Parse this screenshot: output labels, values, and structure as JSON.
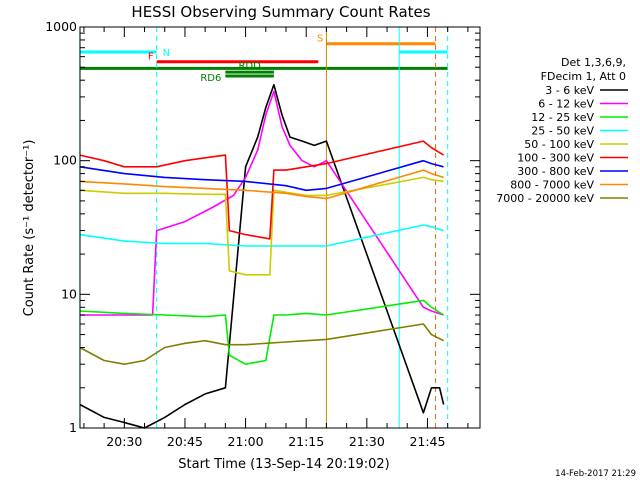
{
  "chart_data": {
    "type": "line",
    "title": "HESSI Observing Summary Count Rates",
    "xlabel": "Start Time (13-Sep-14 20:19:02)",
    "ylabel": "Count Rate (s⁻¹ detector⁻¹)",
    "yscale": "log",
    "xlim": [
      "20:19:02",
      "21:58:00"
    ],
    "ylim": [
      1,
      1000
    ],
    "x_ticks": [
      "20:30",
      "20:45",
      "21:00",
      "21:15",
      "21:30",
      "21:45"
    ],
    "y_ticks": [
      {
        "value": 1,
        "label": "1"
      },
      {
        "value": 10,
        "label": "10"
      },
      {
        "value": 100,
        "label": "100"
      },
      {
        "value": 1000,
        "label": "1000"
      }
    ],
    "legend_header": [
      "Det 1,3,6,9,",
      "FDecim 1, Att 0"
    ],
    "legend_position": "right",
    "series": [
      {
        "name": "3 - 6 keV",
        "color": "#000000",
        "x": [
          "20:19",
          "20:25",
          "20:30",
          "20:35",
          "20:40",
          "20:45",
          "20:50",
          "20:55",
          "21:00",
          "21:03",
          "21:05",
          "21:07",
          "21:09",
          "21:11",
          "21:14",
          "21:17",
          "21:20",
          "21:44",
          "21:46",
          "21:48",
          "21:49"
        ],
        "y": [
          1.5,
          1.2,
          1.1,
          1.0,
          1.2,
          1.5,
          1.8,
          2.0,
          90,
          150,
          250,
          370,
          220,
          150,
          140,
          130,
          140,
          1.3,
          2.0,
          2.0,
          1.5
        ]
      },
      {
        "name": "6 - 12 keV",
        "color": "#ff00ff",
        "x": [
          "20:19",
          "20:30",
          "20:37",
          "20:38",
          "20:45",
          "20:52",
          "20:57",
          "21:00",
          "21:03",
          "21:05",
          "21:07",
          "21:09",
          "21:11",
          "21:14",
          "21:17",
          "21:20",
          "21:44",
          "21:46",
          "21:49"
        ],
        "y": [
          7,
          7,
          7,
          30,
          35,
          45,
          55,
          75,
          120,
          220,
          330,
          180,
          130,
          100,
          90,
          100,
          8,
          7.5,
          7
        ]
      },
      {
        "name": "12 - 25 keV",
        "color": "#00ee00",
        "x": [
          "20:19",
          "20:30",
          "20:40",
          "20:50",
          "20:55",
          "20:56",
          "21:00",
          "21:05",
          "21:07",
          "21:10",
          "21:15",
          "21:20",
          "21:44",
          "21:46",
          "21:49"
        ],
        "y": [
          7.5,
          7.2,
          7.0,
          6.8,
          7,
          3.5,
          3.0,
          3.2,
          7.0,
          7.0,
          7.2,
          7.0,
          9,
          8,
          7
        ]
      },
      {
        "name": "25 - 50 keV",
        "color": "#00ffff",
        "x": [
          "20:19",
          "20:30",
          "20:40",
          "20:50",
          "21:00",
          "21:10",
          "21:20",
          "21:44",
          "21:46",
          "21:49"
        ],
        "y": [
          28,
          25,
          24,
          24,
          23,
          23,
          23,
          33,
          32,
          30
        ]
      },
      {
        "name": "50 - 100 keV",
        "color": "#cccc00",
        "x": [
          "20:19",
          "20:30",
          "20:40",
          "20:50",
          "20:55",
          "20:56",
          "21:00",
          "21:06",
          "21:07",
          "21:10",
          "21:15",
          "21:20",
          "21:44",
          "21:46",
          "21:49"
        ],
        "y": [
          60,
          57,
          57,
          56,
          56,
          15,
          14,
          14,
          60,
          58,
          55,
          55,
          75,
          72,
          70
        ]
      },
      {
        "name": "100 - 300 keV",
        "color": "#ff0000",
        "x": [
          "20:19",
          "20:25",
          "20:30",
          "20:38",
          "20:45",
          "20:50",
          "20:55",
          "20:56",
          "21:00",
          "21:06",
          "21:07",
          "21:10",
          "21:15",
          "21:20",
          "21:44",
          "21:46",
          "21:49"
        ],
        "y": [
          110,
          100,
          90,
          90,
          100,
          105,
          110,
          30,
          28,
          26,
          85,
          85,
          90,
          95,
          140,
          125,
          110
        ]
      },
      {
        "name": "300 - 800 keV",
        "color": "#0000ff",
        "x": [
          "20:19",
          "20:30",
          "20:40",
          "20:50",
          "21:00",
          "21:10",
          "21:15",
          "21:20",
          "21:44",
          "21:46",
          "21:49"
        ],
        "y": [
          90,
          80,
          75,
          72,
          70,
          65,
          60,
          62,
          100,
          95,
          90
        ]
      },
      {
        "name": "800 - 7000 keV",
        "color": "#ff8800",
        "x": [
          "20:19",
          "20:30",
          "20:40",
          "20:50",
          "21:00",
          "21:10",
          "21:15",
          "21:20",
          "21:44",
          "21:46",
          "21:49"
        ],
        "y": [
          70,
          67,
          64,
          62,
          60,
          57,
          54,
          52,
          85,
          80,
          75
        ]
      },
      {
        "name": "7000 - 20000 keV",
        "color": "#808000",
        "x": [
          "20:19",
          "20:25",
          "20:30",
          "20:35",
          "20:40",
          "20:45",
          "20:50",
          "20:55",
          "21:00",
          "21:05",
          "21:10",
          "21:15",
          "21:20",
          "21:44",
          "21:46",
          "21:49"
        ],
        "y": [
          4,
          3.2,
          3,
          3.2,
          4,
          4.3,
          4.5,
          4.2,
          4.2,
          4.3,
          4.4,
          4.5,
          4.6,
          6,
          5,
          4.5
        ]
      }
    ],
    "vertical_lines": [
      {
        "x": "20:19",
        "color": "#00ffff",
        "style": "solid"
      },
      {
        "x": "20:38",
        "color": "#00ffff",
        "style": "dashed"
      },
      {
        "x": "21:20",
        "color": "#cc8800",
        "style": "solid"
      },
      {
        "x": "21:38",
        "color": "#00ffff",
        "style": "solid"
      },
      {
        "x": "21:47",
        "color": "#ff6600",
        "style": "dashed"
      },
      {
        "x": "21:50",
        "color": "#00ffff",
        "style": "dashed"
      }
    ],
    "flag_bars": [
      {
        "label": "N",
        "color": "#00ffff",
        "segments": [
          [
            "20:19",
            "20:38"
          ],
          [
            "21:38",
            "21:50"
          ]
        ],
        "y": 650
      },
      {
        "label": "S",
        "color": "#ff8800",
        "segments": [
          [
            "21:20",
            "21:47"
          ]
        ],
        "y": 750
      },
      {
        "label": "F",
        "color": "#ff0000",
        "segments": [
          [
            "20:38",
            "21:18"
          ]
        ],
        "y": 550
      },
      {
        "label": "",
        "color": "#008000",
        "segments": [
          [
            "20:19",
            "21:50"
          ]
        ],
        "y": 490
      },
      {
        "label": "RDD",
        "color": "#008000",
        "segments": [
          [
            "20:55",
            "21:07"
          ]
        ],
        "y": 460
      },
      {
        "label": "RD6",
        "color": "#008000",
        "segments": [
          [
            "20:55",
            "21:07"
          ]
        ],
        "y": 430
      }
    ]
  },
  "footer": {
    "timestamp": "14-Feb-2017 21:29"
  }
}
